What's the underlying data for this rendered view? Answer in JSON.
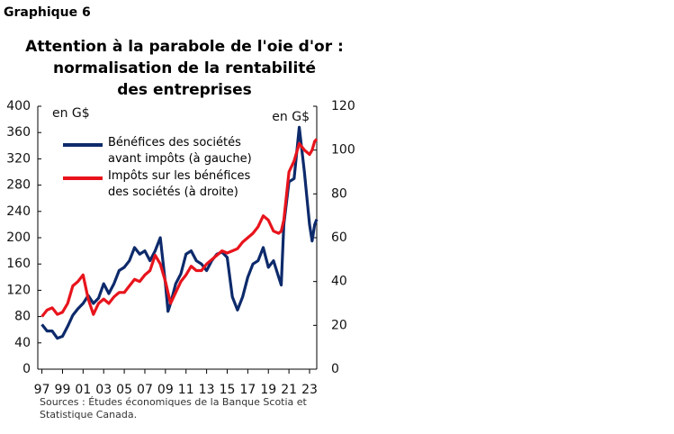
{
  "chart_data": {
    "type": "line",
    "label": "Graphique 6",
    "title_lines": [
      "Attention à la parabole de l'oie d'or :",
      "normalisation de la rentabilité",
      "des entreprises"
    ],
    "y_unit": "en G$",
    "y2_unit": "en G$",
    "source": "Sources : Études économiques de la Banque Scotia et Statistique Canada.",
    "x": [
      1997,
      1997.5,
      1998,
      1998.5,
      1999,
      1999.5,
      2000,
      2000.5,
      2001,
      2001.5,
      2002,
      2002.5,
      2003,
      2003.5,
      2004,
      2004.5,
      2005,
      2005.5,
      2006,
      2006.5,
      2007,
      2007.5,
      2008,
      2008.5,
      2009,
      2009.25,
      2009.5,
      2010,
      2010.5,
      2011,
      2011.5,
      2012,
      2012.5,
      2013,
      2013.5,
      2014,
      2014.5,
      2015,
      2015.5,
      2016,
      2016.5,
      2017,
      2017.5,
      2018,
      2018.5,
      2019,
      2019.5,
      2020,
      2020.25,
      2020.5,
      2021,
      2021.5,
      2022,
      2022.5,
      2023,
      2023.25,
      2023.5,
      2023.7
    ],
    "series": [
      {
        "name": "Bénéfices des sociétés avant impôts (à gauche)",
        "color": "#0d2a6b",
        "values": [
          68,
          58,
          58,
          47,
          50,
          65,
          82,
          92,
          100,
          112,
          100,
          108,
          130,
          115,
          130,
          150,
          155,
          165,
          185,
          175,
          180,
          165,
          180,
          200,
          130,
          88,
          100,
          130,
          145,
          175,
          180,
          165,
          160,
          150,
          165,
          175,
          178,
          170,
          110,
          90,
          110,
          140,
          160,
          165,
          185,
          155,
          165,
          140,
          128,
          220,
          285,
          290,
          368,
          300,
          220,
          195,
          220,
          228
        ]
      },
      {
        "name": "Impôts sur les bénéfices des sociétés (à droite)",
        "color": "#e8141c",
        "axis": "y2",
        "values": [
          24,
          27,
          28,
          25,
          26,
          30,
          38,
          40,
          43,
          32,
          25,
          30,
          32,
          30,
          33,
          35,
          35,
          38,
          41,
          40,
          43,
          45,
          52,
          48,
          40,
          35,
          30,
          35,
          40,
          43,
          47,
          45,
          45,
          48,
          50,
          52,
          54,
          53,
          54,
          55,
          58,
          60,
          62,
          65,
          70,
          68,
          63,
          62,
          63,
          68,
          90,
          95,
          103,
          100,
          98,
          100,
          104,
          105
        ]
      }
    ],
    "xlim": [
      1996.6,
      2023.7
    ],
    "xticks": [
      {
        "value": 1997,
        "label": "97"
      },
      {
        "value": 1999,
        "label": "99"
      },
      {
        "value": 2001,
        "label": "01"
      },
      {
        "value": 2003,
        "label": "03"
      },
      {
        "value": 2005,
        "label": "05"
      },
      {
        "value": 2007,
        "label": "07"
      },
      {
        "value": 2009,
        "label": "09"
      },
      {
        "value": 2011,
        "label": "11"
      },
      {
        "value": 2013,
        "label": "13"
      },
      {
        "value": 2015,
        "label": "15"
      },
      {
        "value": 2017,
        "label": "17"
      },
      {
        "value": 2019,
        "label": "19"
      },
      {
        "value": 2021,
        "label": "21"
      },
      {
        "value": 2023,
        "label": "23"
      }
    ],
    "ylim": [
      0,
      400
    ],
    "yticks": [
      0,
      40,
      80,
      120,
      160,
      200,
      240,
      280,
      320,
      360,
      400
    ],
    "y2lim": [
      0,
      120
    ],
    "y2ticks": [
      0,
      20,
      40,
      60,
      80,
      100,
      120
    ]
  }
}
